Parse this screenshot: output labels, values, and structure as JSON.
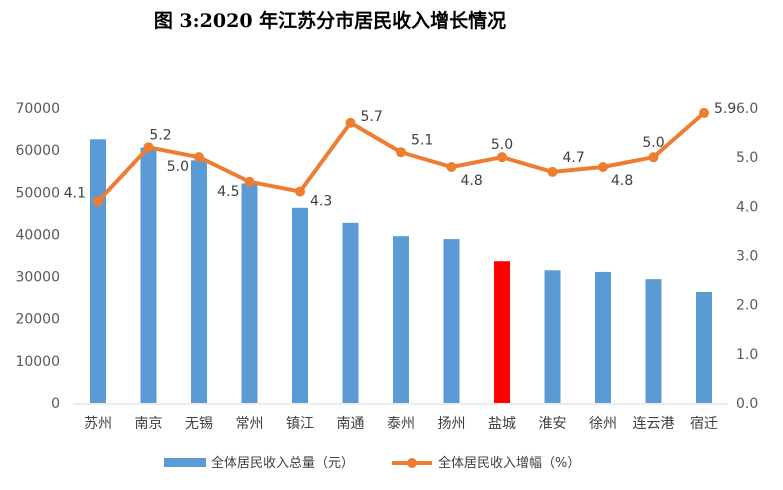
{
  "chart_data": {
    "type": "bar+line",
    "title": "图 3:2020 年江苏分市居民收入增长情况",
    "categories": [
      "苏州",
      "南京",
      "无锡",
      "常州",
      "镇江",
      "南通",
      "泰州",
      "扬州",
      "盐城",
      "淮安",
      "徐州",
      "连云港",
      "宿迁"
    ],
    "series": [
      {
        "name": "全体居民收入总量（元）",
        "type": "bar",
        "axis": "left",
        "color": "#5B9BD5",
        "highlight": {
          "category": "盐城",
          "color": "#FF0000"
        },
        "values": [
          62582,
          60606,
          57589,
          52080,
          46319,
          42758,
          39581,
          38897,
          33639,
          31494,
          31101,
          29385,
          26354
        ]
      },
      {
        "name": "全体居民收入增幅（%）",
        "type": "line",
        "axis": "right",
        "color": "#ED7D31",
        "values": [
          4.1,
          5.2,
          5.0,
          4.5,
          4.3,
          5.7,
          5.1,
          4.8,
          5.0,
          4.7,
          4.8,
          5.0,
          5.9
        ],
        "labels": [
          "4.1",
          "5.2",
          "5.0",
          "4.5",
          "4.3",
          "5.7",
          "5.1",
          "4.8",
          "5.0",
          "4.7",
          "4.8",
          "5.0",
          "5.9"
        ]
      }
    ],
    "y_left": {
      "lim": [
        0,
        70000
      ],
      "ticks": [
        "0",
        "10000",
        "20000",
        "30000",
        "40000",
        "50000",
        "60000",
        "70000"
      ]
    },
    "y_right": {
      "lim": [
        0,
        6
      ],
      "ticks": [
        "0.0",
        "1.0",
        "2.0",
        "3.0",
        "4.0",
        "5.0",
        "6.0"
      ]
    },
    "grid": false,
    "legend": "bottom"
  }
}
